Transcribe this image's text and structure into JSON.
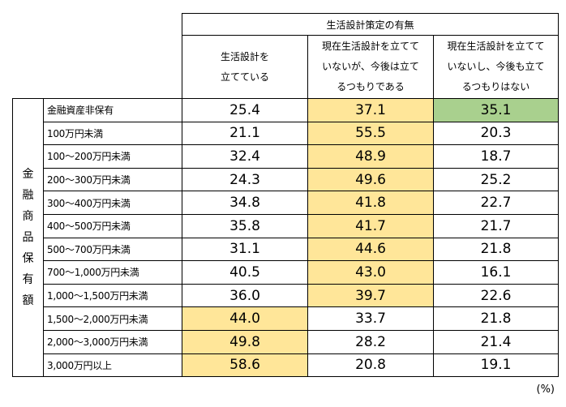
{
  "header": {
    "group_title": "生活設計策定の有無",
    "columns": [
      [
        "生活設計を",
        "立てている"
      ],
      [
        "現在生活設計を立てて",
        "いないが、今後は立て",
        "るつもりである"
      ],
      [
        "現在生活設計を立てて",
        "いないし、今後も立て",
        "るつもりはない"
      ]
    ]
  },
  "row_group_label": [
    "金",
    "融",
    "商",
    "品",
    "保",
    "有",
    "額"
  ],
  "rows": [
    {
      "label": "金融資産非保有",
      "values": [
        "25.4",
        "37.1",
        "35.1"
      ],
      "highlight": [
        "",
        "yellow",
        "green"
      ]
    },
    {
      "label": "100万円未満",
      "values": [
        "21.1",
        "55.5",
        "20.3"
      ],
      "highlight": [
        "",
        "yellow",
        ""
      ]
    },
    {
      "label": "100～200万円未満",
      "values": [
        "32.4",
        "48.9",
        "18.7"
      ],
      "highlight": [
        "",
        "yellow",
        ""
      ]
    },
    {
      "label": "200～300万円未満",
      "values": [
        "24.3",
        "49.6",
        "25.2"
      ],
      "highlight": [
        "",
        "yellow",
        ""
      ]
    },
    {
      "label": "300～400万円未満",
      "values": [
        "34.8",
        "41.8",
        "22.7"
      ],
      "highlight": [
        "",
        "yellow",
        ""
      ]
    },
    {
      "label": "400～500万円未満",
      "values": [
        "35.8",
        "41.7",
        "21.7"
      ],
      "highlight": [
        "",
        "yellow",
        ""
      ]
    },
    {
      "label": "500～700万円未満",
      "values": [
        "31.1",
        "44.6",
        "21.8"
      ],
      "highlight": [
        "",
        "yellow",
        ""
      ]
    },
    {
      "label": "700～1,000万円未満",
      "values": [
        "40.5",
        "43.0",
        "16.1"
      ],
      "highlight": [
        "",
        "yellow",
        ""
      ]
    },
    {
      "label": "1,000～1,500万円未満",
      "values": [
        "36.0",
        "39.7",
        "22.6"
      ],
      "highlight": [
        "",
        "yellow",
        ""
      ]
    },
    {
      "label": "1,500～2,000万円未満",
      "values": [
        "44.0",
        "33.7",
        "21.8"
      ],
      "highlight": [
        "yellow",
        "",
        ""
      ]
    },
    {
      "label": "2,000～3,000万円未満",
      "values": [
        "49.8",
        "28.2",
        "21.4"
      ],
      "highlight": [
        "yellow",
        "",
        ""
      ]
    },
    {
      "label": "3,000万円以上",
      "values": [
        "58.6",
        "20.8",
        "19.1"
      ],
      "highlight": [
        "yellow",
        "",
        ""
      ]
    }
  ],
  "unit": "(%)",
  "colors": {
    "yellow": "#ffe699",
    "green": "#a9d08e"
  }
}
